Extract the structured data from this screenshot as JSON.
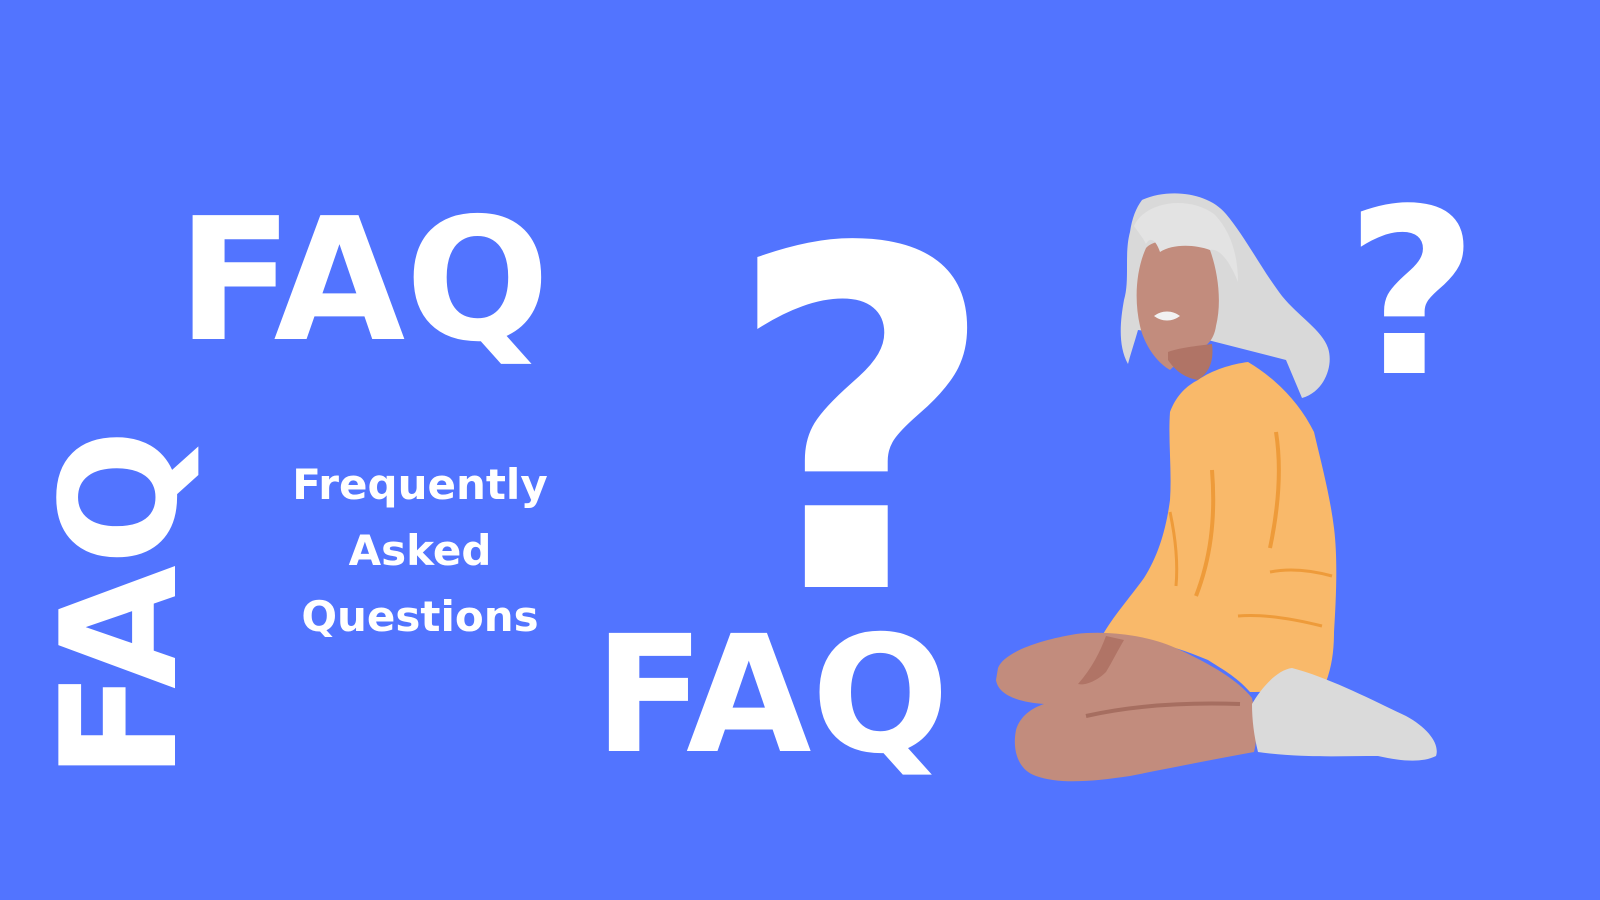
{
  "texts": {
    "faq_top": "FAQ",
    "faq_side": "FAQ",
    "faq_bottom": "FAQ",
    "subtitle_line1": "Frequently",
    "subtitle_line2": "Asked",
    "subtitle_line3": "Questions",
    "qmark_big": "?",
    "qmark_small": "?"
  },
  "colors": {
    "background": "#5274FF",
    "text": "#FFFFFF",
    "hair": "#D9D9D9",
    "skin": "#C28C7D",
    "sweater": "#F9B96A",
    "sweater_shadow": "#EE9B3A",
    "sock": "#DADADA"
  }
}
